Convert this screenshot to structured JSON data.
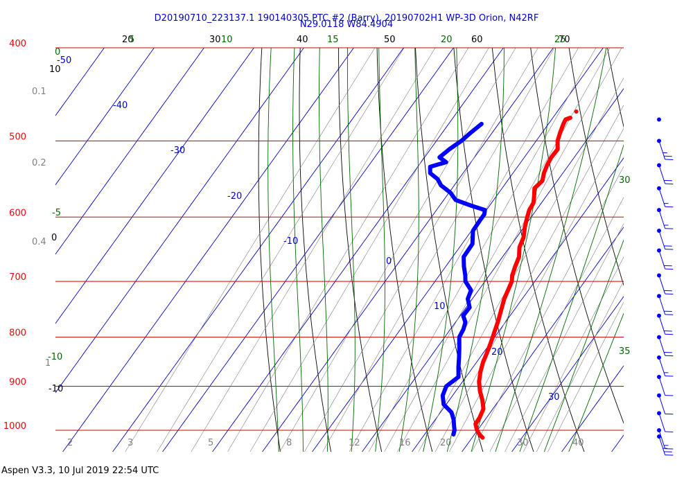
{
  "title_line1": "D20190710_223137.1 190140305 PTC #2 (Barry), 20190702H1 WP-3D Orion, N42RF",
  "title_line2": "N29.0118 W84.4904",
  "footer": "Aspen V3.3, 10 Jul 2019  22:54 UTC",
  "colors": {
    "temperature": "#ff0000",
    "dewpoint": "#0000ff",
    "isobar": "#cc0000",
    "isotherm": "#0000cc",
    "dry_adiabat": "#000000",
    "moist_adiabat": "#006600",
    "mixing_ratio": "#808080",
    "wind": "#0000ff"
  },
  "chart_data": {
    "type": "skew-t log-p",
    "pressure_axis": {
      "ticks": [
        400,
        500,
        600,
        700,
        800,
        900,
        1000
      ],
      "range": [
        400,
        1050
      ],
      "scale": "log"
    },
    "isotherm_labels": [
      "-50",
      "-40",
      "-30",
      "-20",
      "-10",
      "0",
      "10",
      "20",
      "30"
    ],
    "dry_adiabat_top_labels": [
      "20",
      "30",
      "40",
      "50",
      "60",
      "70"
    ],
    "dry_adiabat_side_labels": [
      "10",
      "0",
      "-10"
    ],
    "moist_adiabat_top_labels": [
      "5",
      "10",
      "15",
      "20",
      "25"
    ],
    "moist_adiabat_side_labels": [
      "0",
      "-5",
      "-10"
    ],
    "moist_adiabat_right_labels": [
      "30",
      "35"
    ],
    "mixing_ratio_labels": [
      "2",
      "3",
      "5",
      "8",
      "12",
      "16",
      "20",
      "30",
      "40"
    ],
    "left_axis_extra_labels": [
      "0.1",
      "0.2",
      "0.4",
      "1"
    ],
    "temperature_profile": [
      [
        473,
        -6.5
      ],
      [
        475,
        -7.2
      ],
      [
        480,
        -7.0
      ],
      [
        490,
        -6.4
      ],
      [
        500,
        -5.7
      ],
      [
        510,
        -4.5
      ],
      [
        520,
        -4.6
      ],
      [
        530,
        -4.3
      ],
      [
        540,
        -3.8
      ],
      [
        550,
        -3.0
      ],
      [
        560,
        -3.5
      ],
      [
        570,
        -2.5
      ],
      [
        580,
        -1.6
      ],
      [
        590,
        -1.4
      ],
      [
        600,
        -0.8
      ],
      [
        615,
        0.2
      ],
      [
        630,
        1.4
      ],
      [
        645,
        2.0
      ],
      [
        660,
        3.3
      ],
      [
        675,
        3.9
      ],
      [
        690,
        4.6
      ],
      [
        700,
        5.4
      ],
      [
        715,
        5.9
      ],
      [
        730,
        6.4
      ],
      [
        750,
        7.4
      ],
      [
        770,
        8.4
      ],
      [
        790,
        9.2
      ],
      [
        810,
        10.0
      ],
      [
        830,
        10.7
      ],
      [
        850,
        11.3
      ],
      [
        870,
        12.2
      ],
      [
        890,
        13.3
      ],
      [
        910,
        14.8
      ],
      [
        930,
        16.6
      ],
      [
        950,
        18.1
      ],
      [
        970,
        18.6
      ],
      [
        985,
        18.7
      ],
      [
        1000,
        19.9
      ],
      [
        1010,
        21.0
      ],
      [
        1018,
        22.1
      ]
    ],
    "dewpoint_profile": [
      [
        480,
        -23.4
      ],
      [
        490,
        -24.3
      ],
      [
        500,
        -25.0
      ],
      [
        510,
        -26.2
      ],
      [
        520,
        -27.0
      ],
      [
        526,
        -25.0
      ],
      [
        532,
        -27.5
      ],
      [
        540,
        -26.6
      ],
      [
        548,
        -24.2
      ],
      [
        556,
        -22.7
      ],
      [
        566,
        -19.7
      ],
      [
        576,
        -17.6
      ],
      [
        584,
        -13.6
      ],
      [
        590,
        -10.3
      ],
      [
        596,
        -9.8
      ],
      [
        605,
        -9.8
      ],
      [
        620,
        -9.7
      ],
      [
        640,
        -7.9
      ],
      [
        660,
        -7.8
      ],
      [
        675,
        -6.4
      ],
      [
        690,
        -4.8
      ],
      [
        700,
        -3.9
      ],
      [
        715,
        -1.5
      ],
      [
        730,
        -0.9
      ],
      [
        745,
        0.7
      ],
      [
        760,
        0.6
      ],
      [
        772,
        2.0
      ],
      [
        785,
        2.6
      ],
      [
        800,
        2.9
      ],
      [
        820,
        4.4
      ],
      [
        840,
        5.8
      ],
      [
        860,
        7.1
      ],
      [
        880,
        8.5
      ],
      [
        900,
        7.4
      ],
      [
        920,
        8.0
      ],
      [
        940,
        9.5
      ],
      [
        958,
        12.2
      ],
      [
        975,
        13.7
      ],
      [
        990,
        14.7
      ],
      [
        1000,
        15.4
      ],
      [
        1010,
        15.8
      ]
    ],
    "wind_barbs": [
      {
        "pressure": 475,
        "speed_kt": 0
      },
      {
        "pressure": 500,
        "speed_kt": 25
      },
      {
        "pressure": 530,
        "speed_kt": 20
      },
      {
        "pressure": 560,
        "speed_kt": 15
      },
      {
        "pressure": 590,
        "speed_kt": 15
      },
      {
        "pressure": 620,
        "speed_kt": 20
      },
      {
        "pressure": 650,
        "speed_kt": 20
      },
      {
        "pressure": 690,
        "speed_kt": 20
      },
      {
        "pressure": 725,
        "speed_kt": 20
      },
      {
        "pressure": 760,
        "speed_kt": 20
      },
      {
        "pressure": 800,
        "speed_kt": 20
      },
      {
        "pressure": 840,
        "speed_kt": 15
      },
      {
        "pressure": 880,
        "speed_kt": 10
      },
      {
        "pressure": 920,
        "speed_kt": 10
      },
      {
        "pressure": 960,
        "speed_kt": 10
      },
      {
        "pressure": 1000,
        "speed_kt": 15
      },
      {
        "pressure": 1015,
        "speed_kt": 25
      }
    ]
  }
}
